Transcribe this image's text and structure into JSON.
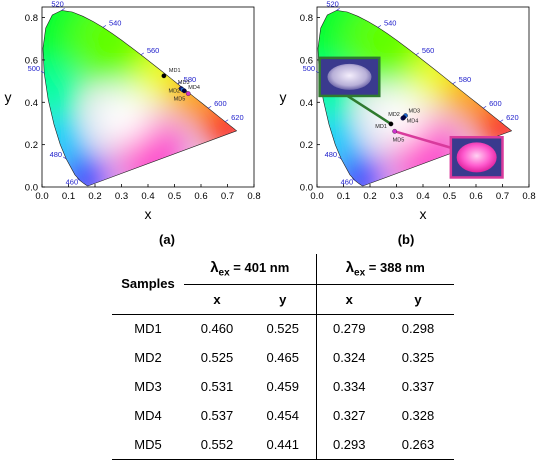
{
  "chart_data": [
    {
      "type": "scatter",
      "panel_label": "(a)",
      "xlabel": "x",
      "ylabel": "y",
      "xlim": [
        0.0,
        0.8
      ],
      "ylim": [
        0.0,
        0.85
      ],
      "xticks": [
        "0.0",
        "0.1",
        "0.2",
        "0.3",
        "0.4",
        "0.5",
        "0.6",
        "0.7",
        "0.8"
      ],
      "yticks": [
        "0.0",
        "0.2",
        "0.4",
        "0.6",
        "0.8"
      ],
      "wavelength_labels": [
        {
          "text": "460",
          "x": 0.144,
          "y": 0.03
        },
        {
          "text": "480",
          "x": 0.091,
          "y": 0.133
        },
        {
          "text": "500",
          "x": 0.008,
          "y": 0.538
        },
        {
          "text": "520",
          "x": 0.074,
          "y": 0.834
        },
        {
          "text": "540",
          "x": 0.23,
          "y": 0.754
        },
        {
          "text": "560",
          "x": 0.373,
          "y": 0.624
        },
        {
          "text": "580",
          "x": 0.512,
          "y": 0.487
        },
        {
          "text": "600",
          "x": 0.627,
          "y": 0.372
        },
        {
          "text": "620",
          "x": 0.691,
          "y": 0.308
        }
      ],
      "points": [
        {
          "label": "MD1",
          "x": 0.46,
          "y": 0.525
        },
        {
          "label": "MD2",
          "x": 0.525,
          "y": 0.465
        },
        {
          "label": "MD3",
          "x": 0.531,
          "y": 0.459
        },
        {
          "label": "MD4",
          "x": 0.537,
          "y": 0.454
        },
        {
          "label": "MD5",
          "x": 0.552,
          "y": 0.441
        }
      ]
    },
    {
      "type": "scatter",
      "panel_label": "(b)",
      "xlabel": "x",
      "ylabel": "y",
      "xlim": [
        0.0,
        0.8
      ],
      "ylim": [
        0.0,
        0.85
      ],
      "xticks": [
        "0.0",
        "0.1",
        "0.2",
        "0.3",
        "0.4",
        "0.5",
        "0.6",
        "0.7",
        "0.8"
      ],
      "yticks": [
        "0.0",
        "0.2",
        "0.4",
        "0.6",
        "0.8"
      ],
      "wavelength_labels": [
        {
          "text": "460",
          "x": 0.144,
          "y": 0.03
        },
        {
          "text": "480",
          "x": 0.091,
          "y": 0.133
        },
        {
          "text": "500",
          "x": 0.008,
          "y": 0.538
        },
        {
          "text": "520",
          "x": 0.074,
          "y": 0.834
        },
        {
          "text": "540",
          "x": 0.23,
          "y": 0.754
        },
        {
          "text": "560",
          "x": 0.373,
          "y": 0.624
        },
        {
          "text": "580",
          "x": 0.512,
          "y": 0.487
        },
        {
          "text": "600",
          "x": 0.627,
          "y": 0.372
        },
        {
          "text": "620",
          "x": 0.691,
          "y": 0.308
        }
      ],
      "points": [
        {
          "label": "MD1",
          "x": 0.279,
          "y": 0.298
        },
        {
          "label": "MD2",
          "x": 0.324,
          "y": 0.325
        },
        {
          "label": "MD3",
          "x": 0.334,
          "y": 0.337
        },
        {
          "label": "MD4",
          "x": 0.327,
          "y": 0.328
        },
        {
          "label": "MD5",
          "x": 0.293,
          "y": 0.263
        }
      ]
    }
  ],
  "colors": {
    "wavelength_label": "#2222cc",
    "point_MD1": "#000000",
    "point_MD2": "#1a1a80",
    "point_MD3": "#2266cc",
    "point_MD4": "#000044",
    "point_MD5": "#cc33cc",
    "inset_frame_green": "#2f7a2f",
    "inset_frame_pink": "#d93a9c"
  },
  "table": {
    "samples_header": "Samples",
    "lambda": "λ",
    "ex": "ex",
    "group_a_value": " = 401 nm",
    "group_b_value": " = 388 nm",
    "col_x": "x",
    "col_y": "y",
    "rows": [
      {
        "sample": "MD1",
        "a_x": "0.460",
        "a_y": "0.525",
        "b_x": "0.279",
        "b_y": "0.298"
      },
      {
        "sample": "MD2",
        "a_x": "0.525",
        "a_y": "0.465",
        "b_x": "0.324",
        "b_y": "0.325"
      },
      {
        "sample": "MD3",
        "a_x": "0.531",
        "a_y": "0.459",
        "b_x": "0.334",
        "b_y": "0.337"
      },
      {
        "sample": "MD4",
        "a_x": "0.537",
        "a_y": "0.454",
        "b_x": "0.327",
        "b_y": "0.328"
      },
      {
        "sample": "MD5",
        "a_x": "0.552",
        "a_y": "0.441",
        "b_x": "0.293",
        "b_y": "0.263"
      }
    ]
  }
}
